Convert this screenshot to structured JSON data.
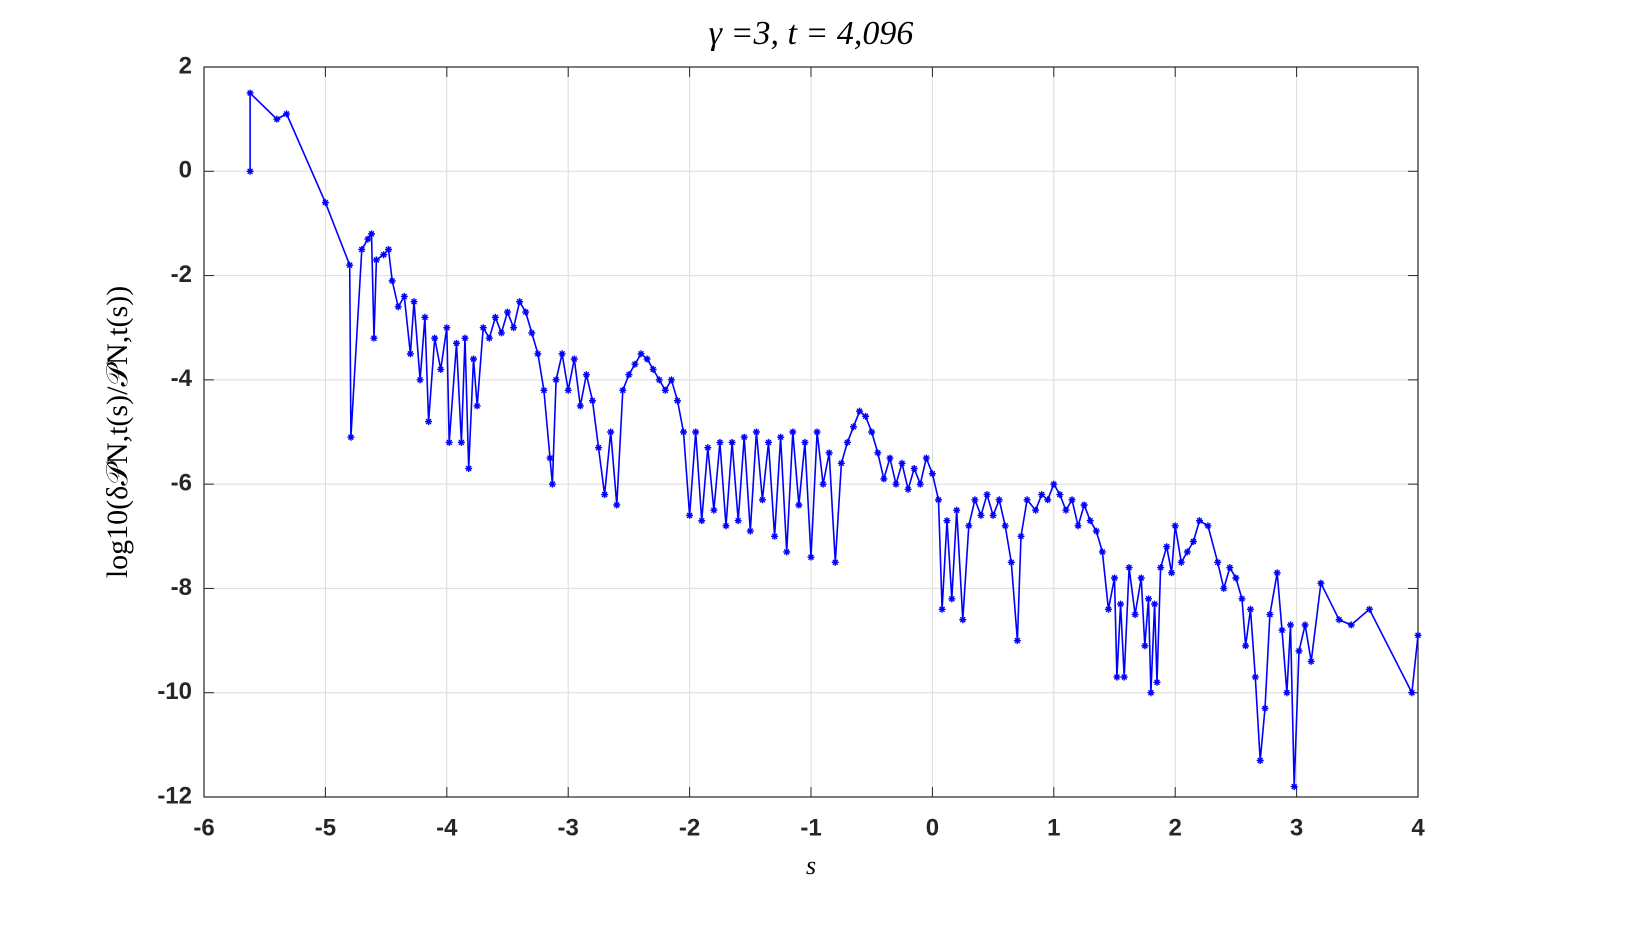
{
  "chart_data": {
    "type": "line",
    "title": "γ =3,    t = 4,096",
    "xlabel": "s",
    "ylabel": "log10(δ𝒫N,t(s)/𝒫N,t(s))",
    "xlim": [
      -6,
      4
    ],
    "xticks": [
      -6,
      -5,
      -4,
      -3,
      -2,
      -1,
      0,
      1,
      2,
      3,
      4
    ],
    "ylim": [
      -12,
      2
    ],
    "yticks": [
      -12,
      -10,
      -8,
      -6,
      -4,
      -2,
      0,
      2
    ],
    "grid": true,
    "color": "#0000ff",
    "x": [
      -5.62,
      -5.62,
      -5.4,
      -5.32,
      -5.0,
      -4.8,
      -4.79,
      -4.7,
      -4.65,
      -4.62,
      -4.6,
      -4.58,
      -4.52,
      -4.48,
      -4.45,
      -4.4,
      -4.35,
      -4.3,
      -4.27,
      -4.22,
      -4.18,
      -4.15,
      -4.1,
      -4.05,
      -4.0,
      -3.98,
      -3.92,
      -3.88,
      -3.85,
      -3.82,
      -3.78,
      -3.75,
      -3.7,
      -3.65,
      -3.6,
      -3.55,
      -3.5,
      -3.45,
      -3.4,
      -3.35,
      -3.3,
      -3.25,
      -3.2,
      -3.15,
      -3.13,
      -3.1,
      -3.05,
      -3.0,
      -2.95,
      -2.9,
      -2.85,
      -2.8,
      -2.75,
      -2.7,
      -2.65,
      -2.6,
      -2.55,
      -2.5,
      -2.45,
      -2.4,
      -2.35,
      -2.3,
      -2.25,
      -2.2,
      -2.15,
      -2.1,
      -2.05,
      -2.0,
      -1.95,
      -1.9,
      -1.85,
      -1.8,
      -1.75,
      -1.7,
      -1.65,
      -1.6,
      -1.55,
      -1.5,
      -1.45,
      -1.4,
      -1.35,
      -1.3,
      -1.25,
      -1.2,
      -1.15,
      -1.1,
      -1.05,
      -1.0,
      -0.95,
      -0.9,
      -0.85,
      -0.8,
      -0.75,
      -0.7,
      -0.65,
      -0.6,
      -0.55,
      -0.5,
      -0.45,
      -0.4,
      -0.35,
      -0.3,
      -0.25,
      -0.2,
      -0.15,
      -0.1,
      -0.05,
      0.0,
      0.05,
      0.08,
      0.12,
      0.16,
      0.2,
      0.25,
      0.3,
      0.35,
      0.4,
      0.45,
      0.5,
      0.55,
      0.6,
      0.65,
      0.7,
      0.73,
      0.78,
      0.85,
      0.9,
      0.95,
      1.0,
      1.05,
      1.1,
      1.15,
      1.2,
      1.25,
      1.3,
      1.35,
      1.4,
      1.45,
      1.5,
      1.52,
      1.55,
      1.58,
      1.62,
      1.67,
      1.72,
      1.75,
      1.78,
      1.8,
      1.83,
      1.85,
      1.88,
      1.93,
      1.97,
      2.0,
      2.05,
      2.1,
      2.15,
      2.2,
      2.27,
      2.35,
      2.4,
      2.45,
      2.5,
      2.55,
      2.58,
      2.62,
      2.66,
      2.7,
      2.74,
      2.78,
      2.84,
      2.88,
      2.92,
      2.95,
      2.98,
      3.02,
      3.07,
      3.12,
      3.2,
      3.35,
      3.45,
      3.6,
      3.95,
      4.0
    ],
    "values": [
      0,
      1.5,
      1.0,
      1.1,
      -0.6,
      -1.8,
      -5.1,
      -1.5,
      -1.3,
      -1.2,
      -3.2,
      -1.7,
      -1.6,
      -1.5,
      -2.1,
      -2.6,
      -2.4,
      -3.5,
      -2.5,
      -4.0,
      -2.8,
      -4.8,
      -3.2,
      -3.8,
      -3.0,
      -5.2,
      -3.3,
      -5.2,
      -3.2,
      -5.7,
      -3.6,
      -4.5,
      -3.0,
      -3.2,
      -2.8,
      -3.1,
      -2.7,
      -3.0,
      -2.5,
      -2.7,
      -3.1,
      -3.5,
      -4.2,
      -5.5,
      -6.0,
      -4.0,
      -3.5,
      -4.2,
      -3.6,
      -4.5,
      -3.9,
      -4.4,
      -5.3,
      -6.2,
      -5.0,
      -6.4,
      -4.2,
      -3.9,
      -3.7,
      -3.5,
      -3.6,
      -3.8,
      -4.0,
      -4.2,
      -4.0,
      -4.4,
      -5.0,
      -6.6,
      -5.0,
      -6.7,
      -5.3,
      -6.5,
      -5.2,
      -6.8,
      -5.2,
      -6.7,
      -5.1,
      -6.9,
      -5.0,
      -6.3,
      -5.2,
      -7.0,
      -5.1,
      -7.3,
      -5.0,
      -6.4,
      -5.2,
      -7.4,
      -5.0,
      -6.0,
      -5.4,
      -7.5,
      -5.6,
      -5.2,
      -4.9,
      -4.6,
      -4.7,
      -5.0,
      -5.4,
      -5.9,
      -5.5,
      -6.0,
      -5.6,
      -6.1,
      -5.7,
      -6.0,
      -5.5,
      -5.8,
      -6.3,
      -8.4,
      -6.7,
      -8.2,
      -6.5,
      -8.6,
      -6.8,
      -6.3,
      -6.6,
      -6.2,
      -6.6,
      -6.3,
      -6.8,
      -7.5,
      -9.0,
      -7.0,
      -6.3,
      -6.5,
      -6.2,
      -6.3,
      -6.0,
      -6.2,
      -6.5,
      -6.3,
      -6.8,
      -6.4,
      -6.7,
      -6.9,
      -7.3,
      -8.4,
      -7.8,
      -9.7,
      -8.3,
      -9.7,
      -7.6,
      -8.5,
      -7.8,
      -9.1,
      -8.2,
      -10.0,
      -8.3,
      -9.8,
      -7.6,
      -7.2,
      -7.7,
      -6.8,
      -7.5,
      -7.3,
      -7.1,
      -6.7,
      -6.8,
      -7.5,
      -8.0,
      -7.6,
      -7.8,
      -8.2,
      -9.1,
      -8.4,
      -9.7,
      -11.3,
      -10.3,
      -8.5,
      -7.7,
      -8.8,
      -10.0,
      -8.7,
      -11.8,
      -9.2,
      -8.7,
      -9.4,
      -7.9,
      -8.6,
      -8.7,
      -8.4,
      -10.0,
      -8.9
    ]
  }
}
